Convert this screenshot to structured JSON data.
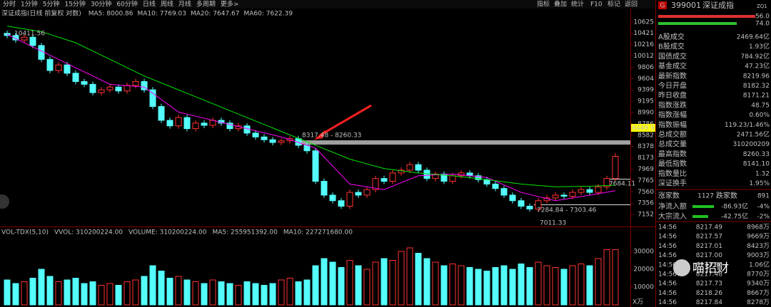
{
  "toolbar": {
    "periods": [
      "分时",
      "1分钟",
      "5分钟",
      "15分钟",
      "30分钟",
      "60分钟",
      "日线",
      "周线",
      "月线",
      "多周期",
      "更多>"
    ],
    "active": 6,
    "buttons": [
      "指标",
      "叠加",
      "统计",
      "F10",
      "标记",
      "返回"
    ]
  },
  "chart_data": {
    "type": "candlestick",
    "title": "深证成指(日线 前复权 对数)",
    "indicators": [
      {
        "text": "MA5: 8000.86",
        "color": "#ffffff"
      },
      {
        "text": "MA10: 7769.03",
        "color": "#ffff00"
      },
      {
        "text": "MA20: 7647.67",
        "color": "#ff00ff"
      },
      {
        "text": "MA60: 7622.39",
        "color": "#00e600"
      }
    ],
    "open": [
      10420,
      10380,
      10300,
      10350,
      10200,
      9950,
      9750,
      9850,
      9700,
      9550,
      9500,
      9350,
      9400,
      9450,
      9380,
      9480,
      9550,
      9400,
      9100,
      8850,
      8750,
      8900,
      8700,
      8800,
      8760,
      8850,
      8800,
      8700,
      8750,
      8620,
      8550,
      8500,
      8450,
      8480,
      8520,
      8400,
      8300,
      7750,
      7500,
      7400,
      7300,
      7550,
      7500,
      7600,
      7800,
      7750,
      7900,
      7950,
      8050,
      7950,
      7800,
      7880,
      7750,
      7850,
      7900,
      7850,
      7780,
      7700,
      7620,
      7500,
      7400,
      7300,
      7250,
      7400,
      7450,
      7500,
      7480,
      7550,
      7600,
      7550,
      7650,
      7800
    ],
    "high": [
      10470,
      10430,
      10400,
      10400,
      10250,
      10000,
      9900,
      9900,
      9750,
      9600,
      9550,
      9450,
      9500,
      9500,
      9530,
      9600,
      9600,
      9450,
      9150,
      8900,
      8950,
      8950,
      8850,
      8850,
      8900,
      8900,
      8850,
      8800,
      8800,
      8670,
      8600,
      8550,
      8530,
      8570,
      8570,
      8450,
      8350,
      7800,
      7550,
      7450,
      7600,
      7600,
      7650,
      7850,
      7850,
      7950,
      8000,
      8100,
      8100,
      8000,
      7930,
      7930,
      7900,
      7950,
      7950,
      7900,
      7830,
      7750,
      7670,
      7550,
      7450,
      7350,
      7450,
      7500,
      7550,
      7550,
      7600,
      7650,
      7650,
      7700,
      7850,
      8260
    ],
    "low": [
      10330,
      10250,
      10250,
      10150,
      9900,
      9700,
      9700,
      9650,
      9500,
      9450,
      9300,
      9300,
      9350,
      9330,
      9330,
      9430,
      9350,
      9050,
      8800,
      8700,
      8700,
      8650,
      8650,
      8710,
      8710,
      8750,
      8650,
      8650,
      8570,
      8500,
      8450,
      8400,
      8400,
      8430,
      8350,
      8250,
      7700,
      7450,
      7350,
      7250,
      7250,
      7450,
      7450,
      7550,
      7700,
      7700,
      7850,
      7900,
      7900,
      7750,
      7750,
      7700,
      7700,
      7800,
      7800,
      7730,
      7650,
      7570,
      7450,
      7350,
      7250,
      7200,
      7200,
      7350,
      7400,
      7430,
      7430,
      7500,
      7500,
      7500,
      7600,
      7750
    ],
    "close": [
      10380,
      10300,
      10350,
      10200,
      9950,
      9750,
      9850,
      9700,
      9550,
      9500,
      9350,
      9400,
      9450,
      9380,
      9480,
      9550,
      9400,
      9100,
      8850,
      8750,
      8900,
      8700,
      8800,
      8760,
      8850,
      8800,
      8700,
      8750,
      8620,
      8550,
      8500,
      8450,
      8480,
      8520,
      8400,
      8300,
      7750,
      7500,
      7400,
      7300,
      7550,
      7500,
      7600,
      7800,
      7750,
      7900,
      7950,
      8050,
      7950,
      7800,
      7880,
      7750,
      7850,
      7900,
      7850,
      7780,
      7700,
      7620,
      7500,
      7400,
      7300,
      7250,
      7400,
      7450,
      7500,
      7480,
      7550,
      7600,
      7550,
      7650,
      7800,
      8200
    ],
    "up_color": "#ff3232",
    "down_color": "#54fcfc",
    "ylim": [
      6934,
      10700
    ],
    "yticks": [
      10625,
      10421,
      10216,
      10012,
      9806,
      9604,
      9399,
      9195,
      8990,
      8786,
      8582,
      8378,
      8173,
      7969,
      7765,
      7560,
      7356,
      7152
    ],
    "moving_averages": {
      "x": [
        0,
        4,
        8,
        12,
        16,
        20,
        24,
        28,
        32,
        36,
        40,
        44,
        48,
        52,
        56,
        60,
        64,
        68,
        71
      ],
      "series": [
        {
          "color": "#ff00ff",
          "values": [
            10400,
            10100,
            9800,
            9500,
            9450,
            9000,
            8850,
            8700,
            8550,
            8350,
            7700,
            7600,
            7850,
            7880,
            7820,
            7550,
            7400,
            7500,
            7580
          ]
        },
        {
          "color": "#00e600",
          "values": [
            10550,
            10450,
            10250,
            9950,
            9650,
            9400,
            9150,
            8900,
            8650,
            8400,
            8150,
            7980,
            7900,
            7850,
            7780,
            7700,
            7650,
            7660,
            7680
          ]
        }
      ]
    },
    "annotations": [
      "10411.56",
      "8317.48 - 8260.33",
      "7284.84 - 7303.46",
      "7011.33",
      "7684.11"
    ],
    "cursor_price": "8449.9"
  },
  "volume": {
    "type": "bar",
    "labels": [
      {
        "text": "VOL-TDX(5,10)",
        "color": "#c0c0c0"
      },
      {
        "text": "VVOL: 310200224.00",
        "color": "#ffffff"
      },
      {
        "text": "VOLUME: 310200224.00",
        "color": "#ffff00"
      },
      {
        "text": "MA5: 255951392.00",
        "color": "#ffffff"
      },
      {
        "text": "MA10: 227271680.00",
        "color": "#ff00ff"
      }
    ],
    "values": [
      14000,
      12000,
      13000,
      15000,
      20000,
      16000,
      13000,
      14000,
      15000,
      12000,
      13000,
      11000,
      12000,
      11000,
      13000,
      14000,
      16000,
      22000,
      19000,
      15000,
      16000,
      14000,
      13000,
      12000,
      14000,
      13000,
      12000,
      11000,
      13000,
      12000,
      11000,
      12000,
      14000,
      15000,
      13000,
      14000,
      22000,
      26000,
      24000,
      21000,
      25000,
      22000,
      20000,
      24000,
      26000,
      25000,
      30000,
      32000,
      29000,
      26000,
      24000,
      22000,
      23000,
      22000,
      21000,
      20000,
      19000,
      21000,
      22000,
      20000,
      23000,
      21000,
      24000,
      22000,
      21000,
      20000,
      22000,
      23000,
      22000,
      26000,
      31000,
      31020
    ],
    "ylim": [
      0,
      38000
    ],
    "yticks": [
      30000,
      20000,
      10000
    ],
    "unit": "X万"
  },
  "quote_panel": {
    "icon": "G",
    "code": "399001",
    "name": "深证成指",
    "tag": "ZQ1",
    "bar_values": [
      "56.0",
      "74.0"
    ],
    "rows": [
      {
        "label": "A股成交",
        "value": "2469.64亿",
        "color": "#ffffff"
      },
      {
        "label": "B股成交",
        "value": "1.93亿",
        "color": "#ffffff"
      },
      {
        "label": "国债成交",
        "value": "784.92亿",
        "color": "#ffffff"
      },
      {
        "label": "基金成交",
        "value": "47.23亿",
        "color": "#ffffff"
      },
      {
        "label": "最新指数",
        "value": "8219.96",
        "color": "#ff3232"
      },
      {
        "label": "今日开盘",
        "value": "8182.32",
        "color": "#ff3232"
      },
      {
        "label": "昨日收盘",
        "value": "8171.21",
        "color": "#ffffff"
      },
      {
        "label": "指数涨跌",
        "value": "48.75",
        "color": "#ff3232"
      },
      {
        "label": "指数涨幅",
        "value": "0.60%",
        "color": "#ff3232"
      },
      {
        "label": "指数振幅",
        "value": "119.23/1.46%",
        "color": "#ffffff"
      },
      {
        "label": "总成交额",
        "value": "2471.56亿",
        "color": "#ffffff"
      },
      {
        "label": "总成交量",
        "value": "310200209",
        "color": "#ffff00"
      },
      {
        "label": "最高指数",
        "value": "8260.33",
        "color": "#ff3232"
      },
      {
        "label": "最低指数",
        "value": "8141.10",
        "color": "#ff3232"
      },
      {
        "label": "指数量比",
        "value": "1.32",
        "color": "#ff3232"
      },
      {
        "label": "深证换手",
        "value": "1.95%",
        "color": "#ffffff"
      }
    ],
    "breadth": {
      "up_label": "涨家数",
      "up": 1127,
      "down_label": "跌家数",
      "down": 891
    },
    "flows": [
      {
        "label": "净流入额",
        "value": "-86.93亿",
        "pct": "-4%"
      },
      {
        "label": "大宗流入",
        "value": "-42.75亿",
        "pct": "-2%"
      }
    ],
    "ticks": [
      {
        "time": "14:56",
        "price": "8217.49",
        "volume": "8968万"
      },
      {
        "time": "14:56",
        "price": "8217.57",
        "volume": "9669万"
      },
      {
        "time": "14:56",
        "price": "8217.01",
        "volume": "8423万"
      },
      {
        "time": "14:56",
        "price": "8217.00",
        "volume": "9003万"
      },
      {
        "time": "14:56",
        "price": "8217.36",
        "volume": "1.06亿"
      },
      {
        "time": "14:56",
        "price": "8217.48",
        "volume": "8770万"
      },
      {
        "time": "14:56",
        "price": "8217.73",
        "volume": "9340万"
      },
      {
        "time": "14:56",
        "price": "8218.26",
        "volume": "8667万"
      },
      {
        "time": "14:56",
        "price": "8217.84",
        "volume": "8278万"
      }
    ]
  },
  "watermark": "喵招财"
}
